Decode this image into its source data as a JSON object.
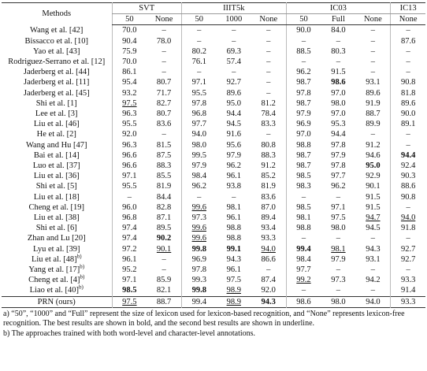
{
  "table": {
    "method_header": "Methods",
    "groups": [
      {
        "label": "SVT",
        "columns": [
          "50",
          "None"
        ]
      },
      {
        "label": "IIIT5k",
        "columns": [
          "50",
          "1000",
          "None"
        ]
      },
      {
        "label": "IC03",
        "columns": [
          "50",
          "Full",
          "None"
        ]
      },
      {
        "label": "IC13",
        "columns": [
          "None"
        ]
      }
    ],
    "rows": [
      {
        "method": "Wang et al. [42]",
        "values": [
          "70.0",
          "–",
          "–",
          "–",
          "–",
          "90.0",
          "84.0",
          "–",
          "–"
        ]
      },
      {
        "method": "Bissacco et al. [10]",
        "values": [
          "90.4",
          "78.0",
          "–",
          "–",
          "–",
          "–",
          "–",
          "–",
          "87.6"
        ]
      },
      {
        "method": "Yao et al. [43]",
        "values": [
          "75.9",
          "–",
          "80.2",
          "69.3",
          "–",
          "88.5",
          "80.3",
          "–",
          "–"
        ]
      },
      {
        "method": "Rodriguez-Serrano et al. [12]",
        "values": [
          "70.0",
          "–",
          "76.1",
          "57.4",
          "–",
          "–",
          "–",
          "–",
          "–"
        ]
      },
      {
        "method": "Jaderberg et al. [44]",
        "values": [
          "86.1",
          "–",
          "–",
          "–",
          "–",
          "96.2",
          "91.5",
          "–",
          "–"
        ]
      },
      {
        "method": "Jaderberg et al. [11]",
        "values": [
          "95.4",
          "80.7",
          "97.1",
          "92.7",
          "–",
          "98.7",
          {
            "text": "98.6",
            "style": "bold"
          },
          "93.1",
          "90.8"
        ]
      },
      {
        "method": "Jaderberg et al. [45]",
        "values": [
          "93.2",
          "71.7",
          "95.5",
          "89.6",
          "–",
          "97.8",
          "97.0",
          "89.6",
          "81.8"
        ]
      },
      {
        "method": "Shi et al. [1]",
        "values": [
          {
            "text": "97.5",
            "style": "underline"
          },
          "82.7",
          "97.8",
          "95.0",
          "81.2",
          "98.7",
          "98.0",
          "91.9",
          "89.6"
        ]
      },
      {
        "method": "Lee et al. [3]",
        "values": [
          "96.3",
          "80.7",
          "96.8",
          "94.4",
          "78.4",
          "97.9",
          "97.0",
          "88.7",
          "90.0"
        ]
      },
      {
        "method": "Liu et al. [46]",
        "values": [
          "95.5",
          "83.6",
          "97.7",
          "94.5",
          "83.3",
          "96.9",
          "95.3",
          "89.9",
          "89.1"
        ]
      },
      {
        "method": "He et al. [2]",
        "values": [
          "92.0",
          "–",
          "94.0",
          "91.6",
          "–",
          "97.0",
          "94.4",
          "–",
          "–"
        ]
      },
      {
        "method": "Wang and Hu [47]",
        "values": [
          "96.3",
          "81.5",
          "98.0",
          "95.6",
          "80.8",
          "98.8",
          "97.8",
          "91.2",
          "–"
        ]
      },
      {
        "method": "Bai et al. [14]",
        "values": [
          "96.6",
          "87.5",
          "99.5",
          "97.9",
          "88.3",
          "98.7",
          "97.9",
          "94.6",
          {
            "text": "94.4",
            "style": "bold"
          }
        ]
      },
      {
        "method": "Luo et al. [37]",
        "values": [
          "96.6",
          "88.3",
          "97.9",
          "96.2",
          "91.2",
          "98.7",
          "97.8",
          {
            "text": "95.0",
            "style": "bold"
          },
          "92.4"
        ]
      },
      {
        "method": "Liu et al. [36]",
        "values": [
          "97.1",
          "85.5",
          "98.4",
          "96.1",
          "85.2",
          "98.5",
          "97.7",
          "92.9",
          "90.3"
        ]
      },
      {
        "method": "Shi et al. [5]",
        "values": [
          "95.5",
          "81.9",
          "96.2",
          "93.8",
          "81.9",
          "98.3",
          "96.2",
          "90.1",
          "88.6"
        ]
      },
      {
        "method": "Liu et al. [18]",
        "values": [
          "–",
          "84.4",
          "–",
          "–",
          "83.6",
          "–",
          "–",
          "91.5",
          "90.8"
        ]
      },
      {
        "method": "Cheng et al. [19]",
        "values": [
          "96.0",
          "82.8",
          {
            "text": "99.6",
            "style": "underline"
          },
          "98.1",
          "87.0",
          "98.5",
          "97.1",
          "91.5",
          "–"
        ]
      },
      {
        "method": "Liu et al. [38]",
        "values": [
          "96.8",
          "87.1",
          "97.3",
          "96.1",
          "89.4",
          "98.1",
          "97.5",
          {
            "text": "94.7",
            "style": "underline"
          },
          {
            "text": "94.0",
            "style": "underline"
          }
        ]
      },
      {
        "method": "Shi et al. [6]",
        "values": [
          "97.4",
          "89.5",
          {
            "text": "99.6",
            "style": "underline"
          },
          "98.8",
          "93.4",
          "98.8",
          "98.0",
          "94.5",
          "91.8"
        ]
      },
      {
        "method": "Zhan and Lu [20]",
        "values": [
          "97.4",
          {
            "text": "90.2",
            "style": "bold"
          },
          {
            "text": "99.6",
            "style": "underline"
          },
          "98.8",
          "93.3",
          "–",
          "–",
          "–",
          "–"
        ]
      },
      {
        "method": "Lyu et al. [39]",
        "values": [
          "97.2",
          {
            "text": "90.1",
            "style": "underline"
          },
          {
            "text": "99.8",
            "style": "bold"
          },
          {
            "text": "99.1",
            "style": "bold"
          },
          {
            "text": "94.0",
            "style": "underline"
          },
          {
            "text": "99.4",
            "style": "bold"
          },
          {
            "text": "98.1",
            "style": "underline"
          },
          "94.3",
          "92.7"
        ]
      },
      {
        "method": "Liu et al. [48]",
        "sup": "b)",
        "values": [
          "96.1",
          "–",
          "96.9",
          "94.3",
          "86.6",
          "98.4",
          "97.9",
          "93.1",
          "92.7"
        ]
      },
      {
        "method": "Yang et al. [17]",
        "sup": "b)",
        "values": [
          "95.2",
          "–",
          "97.8",
          "96.1",
          "–",
          "97.7",
          "–",
          "–",
          "–"
        ]
      },
      {
        "method": "Cheng et al. [4]",
        "sup": "b)",
        "values": [
          "97.1",
          "85.9",
          "99.3",
          "97.5",
          "87.4",
          {
            "text": "99.2",
            "style": "underline"
          },
          "97.3",
          "94.2",
          "93.3"
        ]
      },
      {
        "method": "Liao et al. [40]",
        "sup": "b)",
        "values": [
          {
            "text": "98.5",
            "style": "bold"
          },
          "82.1",
          {
            "text": "99.8",
            "style": "bold"
          },
          {
            "text": "98.9",
            "style": "underline"
          },
          "92.0",
          "–",
          "–",
          "–",
          "91.4"
        ]
      },
      {
        "method": "PRN (ours)",
        "values": [
          {
            "text": "97.5",
            "style": "underline"
          },
          "88.7",
          "99.4",
          {
            "text": "98.9",
            "style": "underline"
          },
          {
            "text": "94.3",
            "style": "bold"
          },
          "98.6",
          "98.0",
          "94.0",
          "93.3"
        ]
      }
    ],
    "footnotes": [
      "a) “50”, “1000” and “Full” represent the size of lexicon used for lexicon-based recognition, and “None” represents lexicon-free recognition. The best results are shown in bold, and the second best results are shown in underline.",
      "b) The approaches trained with both word-level and character-level annotations."
    ]
  }
}
